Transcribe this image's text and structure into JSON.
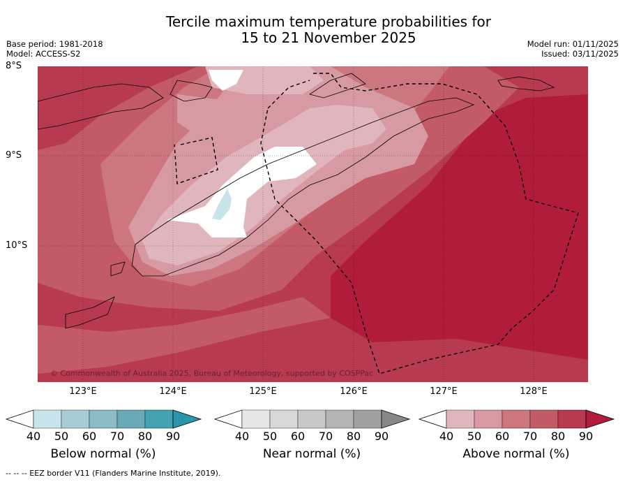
{
  "header": {
    "title_line1": "Tercile maximum temperature probabilities for",
    "title_line2": "15 to 21 November 2025",
    "base_period": "Base period: 1981-2018",
    "model": "Model: ACCESS-S2",
    "model_run": "Model run: 01/11/2025",
    "issued": "Issued: 03/11/2025"
  },
  "axes": {
    "lat_labels": [
      "8°S",
      "9°S",
      "10°S"
    ],
    "lon_labels": [
      "123°E",
      "124°E",
      "125°E",
      "126°E",
      "127°E",
      "128°E"
    ]
  },
  "map": {
    "copyright": "© Commonwealth of Australia 2025, Bureau of Meteorology, supported by COSPPac"
  },
  "legends": [
    {
      "name": "below",
      "label": "Below normal (%)",
      "colors": [
        "#c9e3ea",
        "#a8ccd3",
        "#8bbcc5",
        "#6aaab8",
        "#44a2b3",
        "#2a96ab"
      ],
      "ticks": [
        "40",
        "50",
        "60",
        "70",
        "80",
        "90"
      ]
    },
    {
      "name": "near",
      "label": "Near normal (%)",
      "colors": [
        "#e6e6e6",
        "#d8d8d8",
        "#c8c8c8",
        "#b4b4b4",
        "#a0a0a0",
        "#888888"
      ],
      "ticks": [
        "40",
        "50",
        "60",
        "70",
        "80",
        "90"
      ]
    },
    {
      "name": "above",
      "label": "Above normal (%)",
      "colors": [
        "#e0b6bc",
        "#d89aa2",
        "#cc7680",
        "#c25a68",
        "#b83a50",
        "#b01c3a"
      ],
      "ticks": [
        "40",
        "50",
        "60",
        "70",
        "80",
        "90"
      ]
    }
  ],
  "footer": {
    "eez_note": "--  --  -- EEZ border V11 (Flanders Marine Institute, 2019)."
  }
}
